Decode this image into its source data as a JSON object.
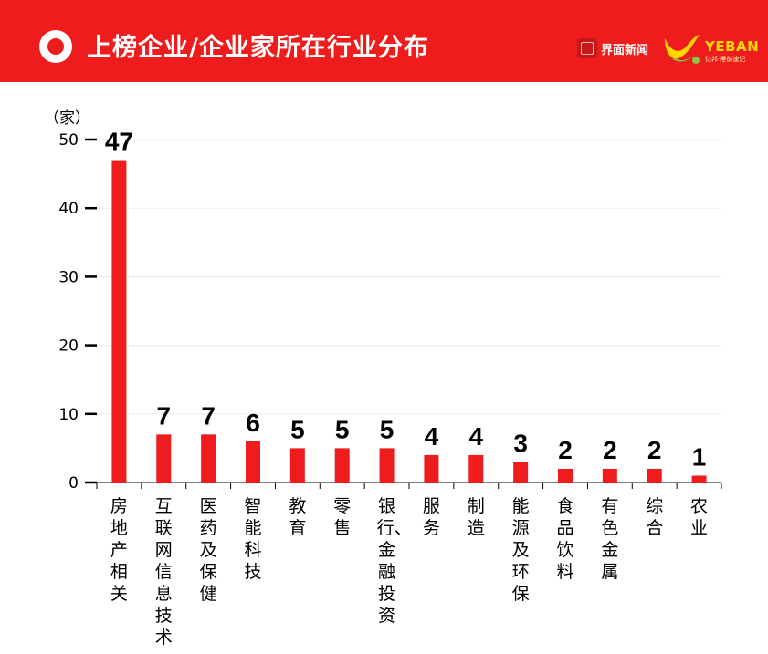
{
  "header": {
    "title": "上榜企业/企业家所在行业分布",
    "brand_jiemian": "界面新闻",
    "brand_yeban_name": "YEBAN",
    "brand_yeban_sub": "亿邦·睡前速记"
  },
  "colors": {
    "accent": "#ee1c1c",
    "bar": "#ee1c1c",
    "header_text": "#ffffff"
  },
  "chart_data": {
    "type": "bar",
    "title": "上榜企业/企业家所在行业分布",
    "xlabel": "",
    "ylabel": "（家）",
    "ylim": [
      0,
      50
    ],
    "yticks": [
      0,
      10,
      20,
      30,
      40,
      50
    ],
    "grid": true,
    "categories": [
      "房地产相关",
      "互联网信息技术",
      "医药及保健",
      "智能科技",
      "教育",
      "零售",
      "银行、金融投资",
      "服务",
      "制造",
      "能源及环保",
      "食品饮料",
      "有色金属",
      "综合",
      "农业"
    ],
    "values": [
      47,
      7,
      7,
      6,
      5,
      5,
      5,
      4,
      4,
      3,
      2,
      2,
      2,
      1
    ],
    "data_labels": [
      "47",
      "7",
      "7",
      "6",
      "5",
      "5",
      "5",
      "4",
      "4",
      "3",
      "2",
      "2",
      "2",
      "1"
    ]
  }
}
